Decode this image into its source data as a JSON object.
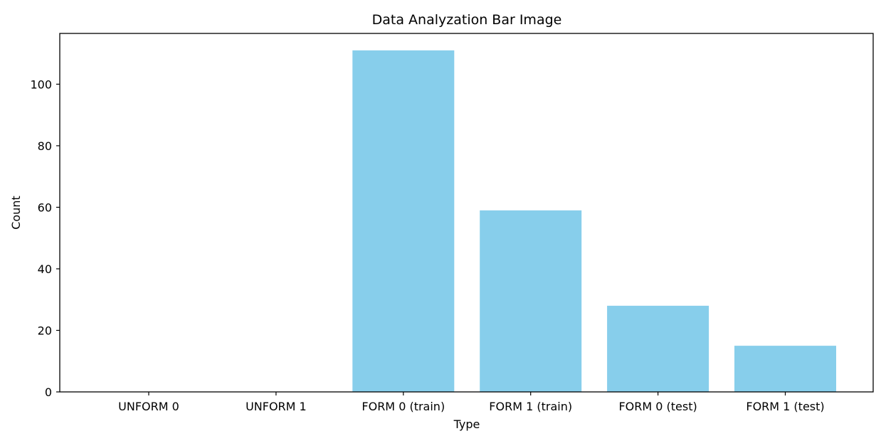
{
  "chart_data": {
    "type": "bar",
    "title": "Data Analyzation Bar Image",
    "xlabel": "Type",
    "ylabel": "Count",
    "categories": [
      "UNFORM 0",
      "UNFORM 1",
      "FORM 0 (train)",
      "FORM 1 (train)",
      "FORM 0 (test)",
      "FORM 1 (test)"
    ],
    "values": [
      0,
      0,
      111,
      59,
      28,
      15
    ],
    "ylim": [
      0,
      116.5
    ],
    "yticks": [
      0,
      20,
      40,
      60,
      80,
      100
    ],
    "grid": false,
    "bar_color": "#87ceeb"
  }
}
